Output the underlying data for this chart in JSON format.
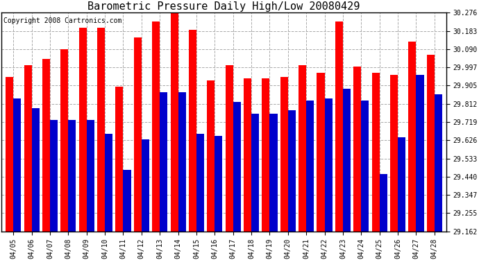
{
  "title": "Barometric Pressure Daily High/Low 20080429",
  "copyright": "Copyright 2008 Cartronics.com",
  "categories": [
    "04/05",
    "04/06",
    "04/07",
    "04/08",
    "04/09",
    "04/10",
    "04/11",
    "04/12",
    "04/13",
    "04/14",
    "04/15",
    "04/16",
    "04/17",
    "04/18",
    "04/19",
    "04/20",
    "04/21",
    "04/22",
    "04/23",
    "04/24",
    "04/25",
    "04/26",
    "04/27",
    "04/28"
  ],
  "highs": [
    29.95,
    30.01,
    30.04,
    30.09,
    30.2,
    30.2,
    29.9,
    30.15,
    30.23,
    30.276,
    30.19,
    29.93,
    30.01,
    29.94,
    29.94,
    29.95,
    30.01,
    29.97,
    30.23,
    30.0,
    29.97,
    29.96,
    30.13,
    30.06
  ],
  "lows": [
    29.84,
    29.79,
    29.73,
    29.73,
    29.73,
    29.66,
    29.476,
    29.63,
    29.87,
    29.87,
    29.66,
    29.65,
    29.82,
    29.76,
    29.76,
    29.78,
    29.83,
    29.84,
    29.89,
    29.83,
    29.455,
    29.64,
    29.96,
    29.86
  ],
  "high_color": "#ff0000",
  "low_color": "#0000cc",
  "background_color": "#ffffff",
  "plot_bg_color": "#ffffff",
  "grid_color": "#aaaaaa",
  "ymin": 29.162,
  "ymax": 30.276,
  "yticks": [
    29.162,
    29.255,
    29.347,
    29.44,
    29.533,
    29.626,
    29.719,
    29.812,
    29.905,
    29.997,
    30.09,
    30.183,
    30.276
  ],
  "title_fontsize": 11,
  "copyright_fontsize": 7,
  "tick_fontsize": 7,
  "bar_width": 0.42
}
